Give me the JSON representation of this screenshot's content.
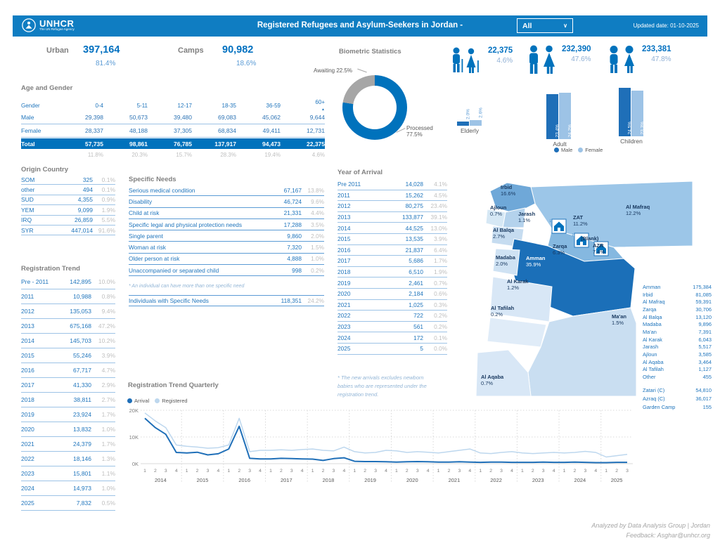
{
  "header": {
    "logo_name": "UNHCR",
    "logo_tagline": "The UN Refugee Agency",
    "title": "Registered Refugees and Asylum-Seekers in Jordan -",
    "filter_value": "All",
    "updated": "Updated date: 01-10-2025"
  },
  "summary": {
    "urban_label": "Urban",
    "urban_value": "397,164",
    "urban_pct": "81.4%",
    "camps_label": "Camps",
    "camps_value": "90,982",
    "camps_pct": "18.6%"
  },
  "demographics": [
    {
      "group": "elderly",
      "value": "22,375",
      "pct": "4.6%"
    },
    {
      "group": "adult",
      "value": "232,390",
      "pct": "47.6%"
    },
    {
      "group": "children",
      "value": "233,381",
      "pct": "47.8%"
    }
  ],
  "age_gender": {
    "title": "Age and Gender",
    "gender_col": "Gender",
    "age_cols": [
      "0-4",
      "5-11",
      "12-17",
      "18-35",
      "36-59",
      "60+"
    ],
    "male_label": "Male",
    "male": [
      "29,398",
      "50,673",
      "39,480",
      "69,083",
      "45,062",
      "9,644"
    ],
    "female_label": "Female",
    "female": [
      "28,337",
      "48,188",
      "37,305",
      "68,834",
      "49,411",
      "12,731"
    ],
    "total_label": "Total",
    "total": [
      "57,735",
      "98,861",
      "76,785",
      "137,917",
      "94,473",
      "22,375"
    ],
    "percents": [
      "11.8%",
      "20.3%",
      "15.7%",
      "28.3%",
      "19.4%",
      "4.6%"
    ]
  },
  "origin_country": {
    "title": "Origin Country",
    "rows": [
      {
        "label": "SOM",
        "value": "325",
        "pct": "0.1%"
      },
      {
        "label": "other",
        "value": "494",
        "pct": "0.1%"
      },
      {
        "label": "SUD",
        "value": "4,355",
        "pct": "0.9%"
      },
      {
        "label": "YEM",
        "value": "9,099",
        "pct": "1.9%"
      },
      {
        "label": "IRQ",
        "value": "26,859",
        "pct": "5.5%"
      },
      {
        "label": "SYR",
        "value": "447,014",
        "pct": "91.6%"
      }
    ]
  },
  "registration_trend": {
    "title": "Registration Trend",
    "rows": [
      {
        "label": "Pre - 2011",
        "value": "142,895",
        "pct": "10.0%"
      },
      {
        "label": "2011",
        "value": "10,988",
        "pct": "0.8%"
      },
      {
        "label": "2012",
        "value": "135,053",
        "pct": "9.4%"
      },
      {
        "label": "2013",
        "value": "675,168",
        "pct": "47.2%"
      },
      {
        "label": "2014",
        "value": "145,703",
        "pct": "10.2%"
      },
      {
        "label": "2015",
        "value": "55,246",
        "pct": "3.9%"
      },
      {
        "label": "2016",
        "value": "67,717",
        "pct": "4.7%"
      },
      {
        "label": "2017",
        "value": "41,330",
        "pct": "2.9%"
      },
      {
        "label": "2018",
        "value": "38,811",
        "pct": "2.7%"
      },
      {
        "label": "2019",
        "value": "23,924",
        "pct": "1.7%"
      },
      {
        "label": "2020",
        "value": "13,832",
        "pct": "1.0%"
      },
      {
        "label": "2021",
        "value": "24,379",
        "pct": "1.7%"
      },
      {
        "label": "2022",
        "value": "18,146",
        "pct": "1.3%"
      },
      {
        "label": "2023",
        "value": "15,801",
        "pct": "1.1%"
      },
      {
        "label": "2024",
        "value": "14,973",
        "pct": "1.0%"
      },
      {
        "label": "2025",
        "value": "7,832",
        "pct": "0.5%"
      }
    ]
  },
  "specific_needs": {
    "title": "Specific Needs",
    "rows": [
      {
        "label": "Serious medical condition",
        "value": "67,167",
        "pct": "13.8%"
      },
      {
        "label": "Disability",
        "value": "46,724",
        "pct": "9.6%"
      },
      {
        "label": "Child at risk",
        "value": "21,331",
        "pct": "4.4%"
      },
      {
        "label": "Specific legal and physical protection needs",
        "value": "17,288",
        "pct": "3.5%"
      },
      {
        "label": "Single parent",
        "value": "9,860",
        "pct": "2.0%"
      },
      {
        "label": "Woman at risk",
        "value": "7,320",
        "pct": "1.5%"
      },
      {
        "label": "Older person at risk",
        "value": "4,888",
        "pct": "1.0%"
      },
      {
        "label": "Unaccompanied or separated child",
        "value": "998",
        "pct": "0.2%"
      }
    ],
    "note": "* An individual can have more than one specific need",
    "total_row": {
      "label": "Individuals with Specific Needs",
      "value": "118,351",
      "pct": "24.2%"
    }
  },
  "year_of_arrival": {
    "title": "Year of Arrival",
    "rows": [
      {
        "label": "Pre 2011",
        "value": "14,028",
        "pct": "4.1%"
      },
      {
        "label": "2011",
        "value": "15,262",
        "pct": "4.5%"
      },
      {
        "label": "2012",
        "value": "80,275",
        "pct": "23.4%"
      },
      {
        "label": "2013",
        "value": "133,877",
        "pct": "39.1%"
      },
      {
        "label": "2014",
        "value": "44,525",
        "pct": "13.0%"
      },
      {
        "label": "2015",
        "value": "13,535",
        "pct": "3.9%"
      },
      {
        "label": "2016",
        "value": "21,837",
        "pct": "6.4%"
      },
      {
        "label": "2017",
        "value": "5,686",
        "pct": "1.7%"
      },
      {
        "label": "2018",
        "value": "6,510",
        "pct": "1.9%"
      },
      {
        "label": "2019",
        "value": "2,461",
        "pct": "0.7%"
      },
      {
        "label": "2020",
        "value": "2,184",
        "pct": "0.6%"
      },
      {
        "label": "2021",
        "value": "1,025",
        "pct": "0.3%"
      },
      {
        "label": "2022",
        "value": "722",
        "pct": "0.2%"
      },
      {
        "label": "2023",
        "value": "561",
        "pct": "0.2%"
      },
      {
        "label": "2024",
        "value": "172",
        "pct": "0.1%"
      },
      {
        "label": "2025",
        "value": "5",
        "pct": "0.0%"
      }
    ],
    "note": "* The new arrivals excludes newborn babies who are represented under the registration trend."
  },
  "map": {
    "labels": [
      {
        "name": "Irbid",
        "pct": "16.6%"
      },
      {
        "name": "Ajloun",
        "pct": "0.7%"
      },
      {
        "name": "Jarash",
        "pct": "1.1%"
      },
      {
        "name": "Al Balqa",
        "pct": "2.7%"
      },
      {
        "name": "Madaba",
        "pct": "2.0%"
      },
      {
        "name": "Amman",
        "pct": "35.9%"
      },
      {
        "name": "Zarqa",
        "pct": "6.3%"
      },
      {
        "name": "ZAT",
        "pct": "11.2%"
      },
      {
        "name": "(Blank)",
        "pct": ""
      },
      {
        "name": "AZR",
        "pct": "7.4%"
      },
      {
        "name": "Al Mafraq",
        "pct": "12.2%"
      },
      {
        "name": "Al Karak",
        "pct": "1.2%"
      },
      {
        "name": "Al Tafilah",
        "pct": "0.2%"
      },
      {
        "name": "Ma'an",
        "pct": "1.5%"
      },
      {
        "name": "Al Aqaba",
        "pct": "0.7%"
      }
    ],
    "region_list": [
      {
        "label": "Amman",
        "value": "175,384"
      },
      {
        "label": "Irbid",
        "value": "81,085"
      },
      {
        "label": "Al Mafraq",
        "value": "59,391"
      },
      {
        "label": "Zarqa",
        "value": "30,706"
      },
      {
        "label": "Al Balqa",
        "value": "13,120"
      },
      {
        "label": "Madaba",
        "value": "9,896"
      },
      {
        "label": "Ma'an",
        "value": "7,391"
      },
      {
        "label": "Al Karak",
        "value": "6,043"
      },
      {
        "label": "Jarash",
        "value": "5,517"
      },
      {
        "label": "Ajloun",
        "value": "3,585"
      },
      {
        "label": "Al Aqaba",
        "value": "3,464"
      },
      {
        "label": "Al Tafilah",
        "value": "1,127"
      },
      {
        "label": "Other",
        "value": "455"
      }
    ],
    "camp_list": [
      {
        "label": "Zatari (C)",
        "value": "54,810"
      },
      {
        "label": "Azraq (C)",
        "value": "36,017"
      },
      {
        "label": "Garden Camp",
        "value": "155"
      }
    ]
  },
  "footer": {
    "line1": "Analyzed by Data Analysis Group | Jordan",
    "line2": "Feedback: Asghar@unhcr.org"
  },
  "chart_data": [
    {
      "id": "biometric-donut",
      "type": "pie",
      "title": "Biometric Statistics",
      "labels": [
        "Processed",
        "Awaiting"
      ],
      "values": [
        77.5,
        22.5
      ],
      "colors": [
        "#0072BC",
        "#A6A6A6"
      ],
      "callouts": {
        "awaiting": "Awaiting 22.5%",
        "processed_1": "Processed",
        "processed_2": "77.5%"
      }
    },
    {
      "id": "demographic-bars",
      "type": "bar",
      "categories": [
        "Elderly",
        "Adult",
        "Children"
      ],
      "series": [
        {
          "name": "Male",
          "values": [
            2.0,
            23.4,
            24.5
          ],
          "color": "#1F6FB8"
        },
        {
          "name": "Female",
          "values": [
            2.6,
            24.2,
            23.3
          ],
          "color": "#9DC3E6"
        }
      ],
      "unit": "%"
    },
    {
      "id": "quarterly-trend",
      "type": "line",
      "title": "Registration Trend Quarterly",
      "years": [
        "2014",
        "2015",
        "2016",
        "2017",
        "2018",
        "2019",
        "2020",
        "2021",
        "2022",
        "2023",
        "2024",
        "2025"
      ],
      "quarters_per_year": [
        4,
        4,
        4,
        4,
        4,
        4,
        4,
        4,
        4,
        4,
        4,
        3
      ],
      "quarter_tick": [
        "1",
        "2",
        "3",
        "4"
      ],
      "ylim": [
        0,
        20
      ],
      "yticks": [
        "0K",
        "10K",
        "20K"
      ],
      "unit": "thousands",
      "series": [
        {
          "name": "Arrival",
          "color": "#1F6FB8",
          "values": [
            17,
            13.5,
            11,
            4.2,
            4,
            4.3,
            3.3,
            3.7,
            5.5,
            14,
            2,
            1.8,
            1.8,
            2,
            1.9,
            1.8,
            1.7,
            1.2,
            1.9,
            2.2,
            0.9,
            0.8,
            0.8,
            0.7,
            0.6,
            0.7,
            0.8,
            0.7,
            0.6,
            0.6,
            0.7,
            0.6,
            0.5,
            0.6,
            0.6,
            0.5,
            0.5,
            0.5,
            0.6,
            0.5,
            0.5,
            0.6,
            0.5,
            0.4,
            0.4,
            0.5,
            0.5
          ]
        },
        {
          "name": "Registered",
          "color": "#BDD7EE",
          "values": [
            19,
            16,
            13.5,
            7,
            6.5,
            6.2,
            5.8,
            6,
            7,
            17,
            4.5,
            5,
            5,
            5.2,
            5,
            5.3,
            5.5,
            5,
            4.8,
            6.2,
            4.5,
            4,
            4.2,
            5,
            4.8,
            4.2,
            4.5,
            4.3,
            4,
            4.5,
            5,
            5.5,
            4,
            3.8,
            4.2,
            4.5,
            4,
            3.8,
            4,
            4.2,
            4,
            4.2,
            4.6,
            4.2,
            2.5,
            3,
            3.5
          ]
        }
      ]
    }
  ]
}
